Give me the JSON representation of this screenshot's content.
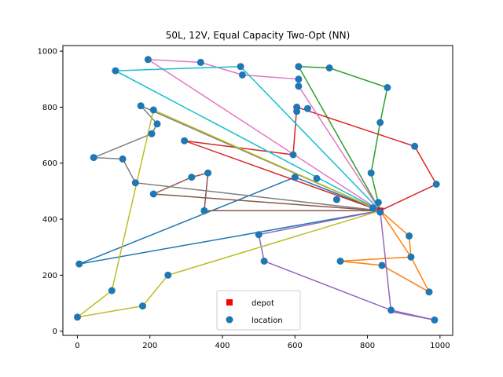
{
  "chart_data": {
    "type": "scatter",
    "title": "50L, 12V, Equal Capacity Two-Opt (NN)",
    "xlabel": "",
    "ylabel": "",
    "xlim": [
      -40,
      1035
    ],
    "ylim": [
      -15,
      1020
    ],
    "xticks": [
      0,
      200,
      400,
      600,
      800,
      1000
    ],
    "yticks": [
      0,
      200,
      400,
      600,
      800,
      1000
    ],
    "grid": false,
    "legend": {
      "placement": "lower center",
      "entries": [
        {
          "label": "depot",
          "marker": "square",
          "color": "#ff0000"
        },
        {
          "label": "location",
          "marker": "circle",
          "color": "#1f77b4"
        }
      ]
    },
    "depot": [
      835,
      430
    ],
    "series": [
      {
        "color": "#1f77b4",
        "route": [
          [
            835,
            430
          ],
          [
            600,
            550
          ],
          [
            5,
            240
          ],
          [
            835,
            430
          ]
        ]
      },
      {
        "color": "#ff7f0e",
        "route": [
          [
            835,
            430
          ],
          [
            915,
            340
          ],
          [
            920,
            265
          ],
          [
            970,
            140
          ],
          [
            840,
            235
          ],
          [
            725,
            250
          ],
          [
            920,
            265
          ],
          [
            835,
            430
          ]
        ]
      },
      {
        "color": "#2ca02c",
        "route": [
          [
            835,
            430
          ],
          [
            810,
            565
          ],
          [
            835,
            745
          ],
          [
            855,
            870
          ],
          [
            695,
            940
          ],
          [
            610,
            945
          ],
          [
            835,
            430
          ]
        ]
      },
      {
        "color": "#d62728",
        "route": [
          [
            835,
            430
          ],
          [
            990,
            525
          ],
          [
            930,
            660
          ],
          [
            605,
            800
          ],
          [
            595,
            630
          ],
          [
            295,
            680
          ],
          [
            835,
            430
          ]
        ]
      },
      {
        "color": "#9467bd",
        "route": [
          [
            835,
            430
          ],
          [
            500,
            345
          ],
          [
            515,
            250
          ],
          [
            865,
            75
          ],
          [
            985,
            40
          ],
          [
            865,
            70
          ],
          [
            835,
            430
          ]
        ]
      },
      {
        "color": "#8c564b",
        "route": [
          [
            835,
            430
          ],
          [
            350,
            430
          ],
          [
            360,
            565
          ],
          [
            315,
            550
          ],
          [
            210,
            490
          ],
          [
            835,
            430
          ]
        ]
      },
      {
        "color": "#e377c2",
        "route": [
          [
            835,
            430
          ],
          [
            610,
            875
          ],
          [
            610,
            900
          ],
          [
            455,
            915
          ],
          [
            340,
            960
          ],
          [
            195,
            970
          ],
          [
            835,
            430
          ]
        ]
      },
      {
        "color": "#7f7f7f",
        "route": [
          [
            835,
            430
          ],
          [
            160,
            530
          ],
          [
            125,
            615
          ],
          [
            45,
            620
          ],
          [
            205,
            705
          ],
          [
            220,
            740
          ],
          [
            175,
            805
          ],
          [
            835,
            430
          ]
        ]
      },
      {
        "color": "#bcbd22",
        "route": [
          [
            835,
            430
          ],
          [
            250,
            200
          ],
          [
            180,
            90
          ],
          [
            0,
            50
          ],
          [
            95,
            145
          ],
          [
            210,
            790
          ],
          [
            835,
            430
          ]
        ]
      },
      {
        "color": "#17becf",
        "route": [
          [
            835,
            430
          ],
          [
            105,
            930
          ],
          [
            450,
            945
          ],
          [
            835,
            430
          ]
        ]
      }
    ],
    "locations": [
      [
        600,
        550
      ],
      [
        5,
        240
      ],
      [
        915,
        340
      ],
      [
        920,
        265
      ],
      [
        970,
        140
      ],
      [
        840,
        235
      ],
      [
        725,
        250
      ],
      [
        810,
        565
      ],
      [
        835,
        745
      ],
      [
        855,
        870
      ],
      [
        695,
        940
      ],
      [
        610,
        945
      ],
      [
        990,
        525
      ],
      [
        930,
        660
      ],
      [
        605,
        800
      ],
      [
        605,
        785
      ],
      [
        635,
        795
      ],
      [
        595,
        630
      ],
      [
        295,
        680
      ],
      [
        500,
        345
      ],
      [
        515,
        250
      ],
      [
        865,
        75
      ],
      [
        985,
        40
      ],
      [
        350,
        430
      ],
      [
        360,
        565
      ],
      [
        315,
        550
      ],
      [
        210,
        490
      ],
      [
        610,
        875
      ],
      [
        610,
        900
      ],
      [
        455,
        915
      ],
      [
        340,
        960
      ],
      [
        195,
        970
      ],
      [
        160,
        530
      ],
      [
        125,
        615
      ],
      [
        45,
        620
      ],
      [
        205,
        705
      ],
      [
        220,
        740
      ],
      [
        175,
        805
      ],
      [
        210,
        790
      ],
      [
        250,
        200
      ],
      [
        180,
        90
      ],
      [
        0,
        50
      ],
      [
        95,
        145
      ],
      [
        105,
        930
      ],
      [
        450,
        945
      ],
      [
        660,
        545
      ],
      [
        715,
        470
      ],
      [
        830,
        460
      ],
      [
        835,
        425
      ],
      [
        815,
        440
      ]
    ]
  }
}
